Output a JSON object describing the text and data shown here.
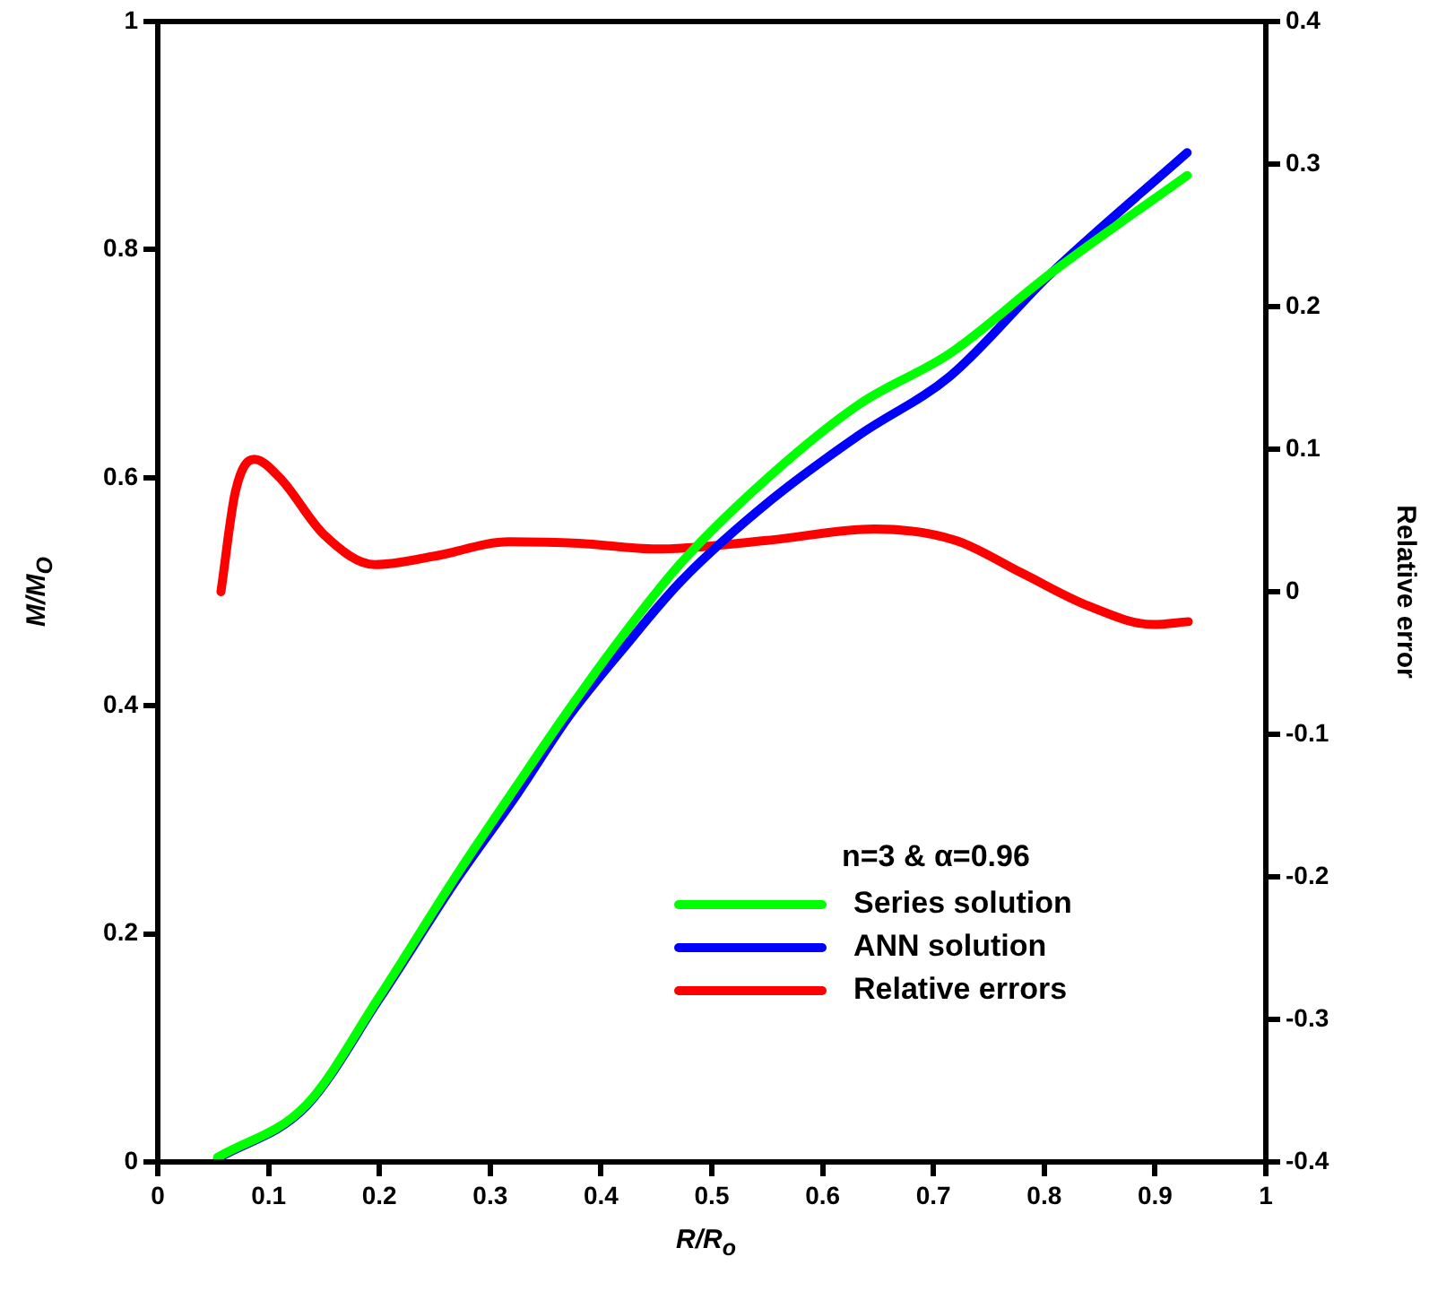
{
  "chart_data": {
    "type": "line",
    "xlabel": "R/R$_{o}$",
    "ylabel": "M/M$_{O}$",
    "y2label": "Relative error",
    "legend_title": "n=3 & α=0.96",
    "legend": "bottom right",
    "grid": false,
    "marker": "none",
    "line_style": "solid",
    "xlim": [
      0,
      1
    ],
    "xticks": [
      0,
      0.1,
      0.2,
      0.3,
      0.4,
      0.5,
      0.6,
      0.7,
      0.8,
      0.9,
      1
    ],
    "ylim": [
      0,
      1
    ],
    "yticks": [
      0,
      0.2,
      0.4,
      0.6,
      0.8,
      1
    ],
    "y2lim": [
      -0.4,
      0.4
    ],
    "y2ticks": [
      -0.4,
      -0.3,
      -0.2,
      -0.1,
      0,
      0.1,
      0.2,
      0.3,
      0.4
    ],
    "series": [
      {
        "name": "Series solution",
        "color": "#00ff00",
        "x": [
          0.054,
          0.134,
          0.2,
          0.27,
          0.324,
          0.372,
          0.42,
          0.472,
          0.553,
          0.634,
          0.715,
          0.807,
          0.929
        ],
        "values": [
          0.004,
          0.05,
          0.145,
          0.252,
          0.33,
          0.398,
          0.462,
          0.525,
          0.602,
          0.665,
          0.709,
          0.78,
          0.865
        ]
      },
      {
        "name": "ANN solution",
        "color": "#0000ff",
        "x": [
          0.054,
          0.134,
          0.2,
          0.27,
          0.324,
          0.372,
          0.42,
          0.472,
          0.553,
          0.634,
          0.715,
          0.807,
          0.929
        ],
        "values": [
          0.003,
          0.049,
          0.143,
          0.248,
          0.322,
          0.392,
          0.45,
          0.509,
          0.58,
          0.638,
          0.689,
          0.78,
          0.885
        ]
      },
      {
        "name": "Relative errors",
        "color": "#ff0000",
        "axis": "y2",
        "x": [
          0.057,
          0.07,
          0.087,
          0.11,
          0.15,
          0.196,
          0.25,
          0.317,
          0.38,
          0.45,
          0.55,
          0.647,
          0.72,
          0.78,
          0.84,
          0.898,
          0.93
        ],
        "values": [
          0,
          0.07,
          0.093,
          0.08,
          0.04,
          0.019,
          0.025,
          0.035,
          0.034,
          0.03,
          0.036,
          0.044,
          0.036,
          0.013,
          -0.01,
          -0.023,
          -0.021
        ]
      }
    ]
  }
}
